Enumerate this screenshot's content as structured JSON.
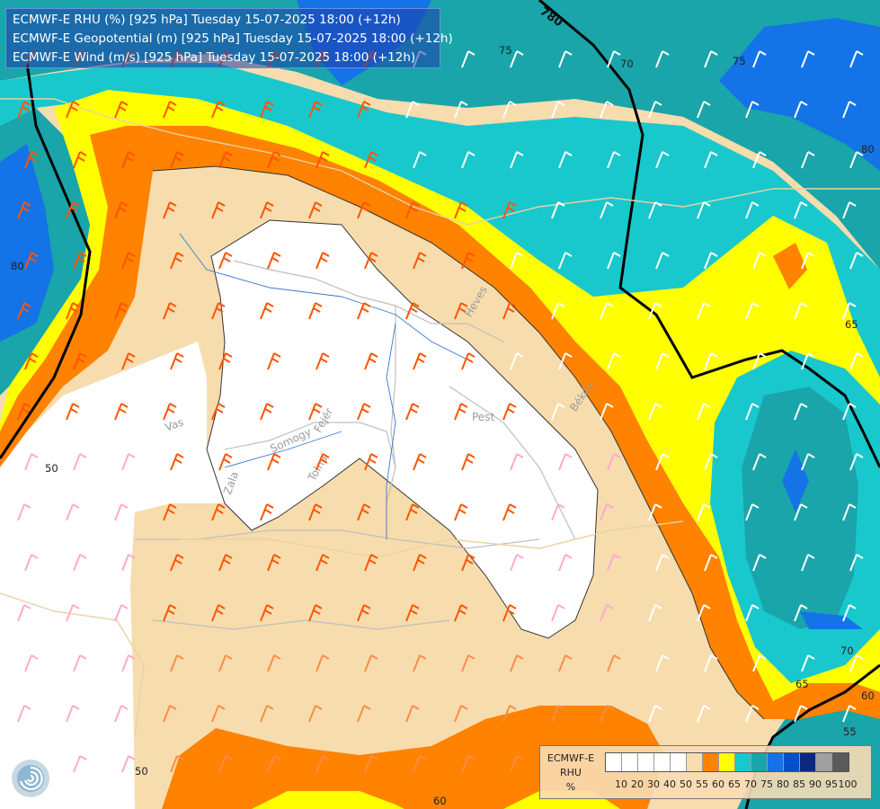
{
  "title_box": {
    "lines": [
      "ECMWF-E RHU (%) [925 hPa] Tuesday 15-07-2025 18:00 (+12h)",
      "ECMWF-E Geopotential (m) [925 hPa] Tuesday 15-07-2025 18:00 (+12h)",
      "ECMWF-E Wind (m/s) [925 hPa] Tuesday 15-07-2025 18:00 (+12h)"
    ]
  },
  "legend": {
    "name_lines": [
      "ECMWF-E",
      "RHU",
      "%"
    ],
    "ticks": [
      "10",
      "20",
      "30",
      "40",
      "50",
      "55",
      "60",
      "65",
      "70",
      "75",
      "80",
      "85",
      "90",
      "95",
      "100"
    ],
    "colors": [
      "#ffffff",
      "#ffffff",
      "#ffffff",
      "#ffffff",
      "#ffffff",
      "#f7dcae",
      "#ff8200",
      "#ffff00",
      "#19c8cd",
      "#19a5aa",
      "#1473e6",
      "#0050c8",
      "#0a2882",
      "#a0a0a0",
      "#5a5a5a"
    ]
  },
  "rhu_contour_labels": [
    "75",
    "75",
    "80",
    "80",
    "65",
    "70",
    "65",
    "60",
    "55",
    "60",
    "50",
    "50",
    "70"
  ],
  "geopotential_label": "780",
  "place_labels": [
    "Heves",
    "Békés",
    "Pest",
    "Vas",
    "Somogy",
    "Fejér",
    "Tolna",
    "Zala"
  ],
  "wind_barbs": {
    "colors": {
      "strong": "#ff5500",
      "moderate": "#ff8c46",
      "light": "#ffaacc",
      "weak": "#ffffff"
    },
    "note_units": "m/s"
  },
  "logo_icon": "ecmwf-swirl-icon"
}
